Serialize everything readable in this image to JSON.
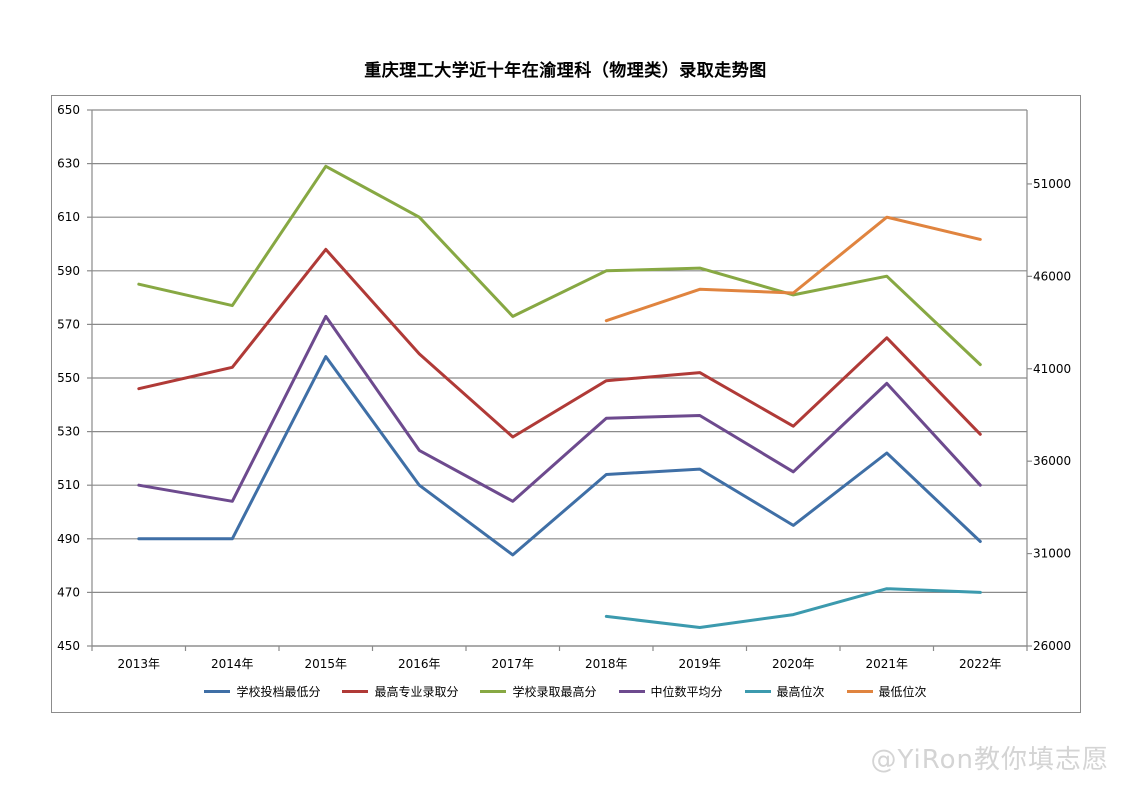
{
  "chart_data": {
    "type": "line",
    "title": "重庆理工大学近十年在渝理科（物理类）录取走势图",
    "categories": [
      "2013年",
      "2014年",
      "2015年",
      "2016年",
      "2017年",
      "2018年",
      "2019年",
      "2020年",
      "2021年",
      "2022年"
    ],
    "y_left": {
      "min": 450,
      "max": 650,
      "ticks": [
        450,
        470,
        490,
        510,
        530,
        550,
        570,
        590,
        610,
        630,
        650
      ]
    },
    "y_right": {
      "min": 26000,
      "max": 55000,
      "ticks": [
        26000,
        31000,
        36000,
        41000,
        46000,
        51000
      ]
    },
    "grid": true,
    "legend_position": "bottom",
    "series": [
      {
        "name": "学校投档最低分",
        "axis": "left",
        "color": "#3f6fa6",
        "values": [
          490,
          490,
          558,
          510,
          484,
          514,
          516,
          495,
          522,
          489
        ]
      },
      {
        "name": "最高专业录取分",
        "axis": "left",
        "color": "#b03a37",
        "values": [
          546,
          554,
          598,
          559,
          528,
          549,
          552,
          532,
          565,
          529
        ]
      },
      {
        "name": "学校录取最高分",
        "axis": "left",
        "color": "#87a843",
        "values": [
          585,
          577,
          629,
          610,
          573,
          590,
          591,
          581,
          588,
          555
        ]
      },
      {
        "name": "中位数平均分",
        "axis": "left",
        "color": "#6d4a8e",
        "values": [
          510,
          504,
          573,
          523,
          504,
          535,
          536,
          515,
          548,
          510
        ]
      },
      {
        "name": "最高位次",
        "axis": "right",
        "color": "#3c9aae",
        "values": [
          null,
          null,
          null,
          null,
          null,
          27600,
          27000,
          27700,
          29100,
          28900
        ]
      },
      {
        "name": "最低位次",
        "axis": "right",
        "color": "#e0843f",
        "values": [
          null,
          null,
          null,
          null,
          null,
          43600,
          45300,
          45100,
          49200,
          48000
        ]
      }
    ]
  },
  "watermark": "@YiRon教你填志愿"
}
